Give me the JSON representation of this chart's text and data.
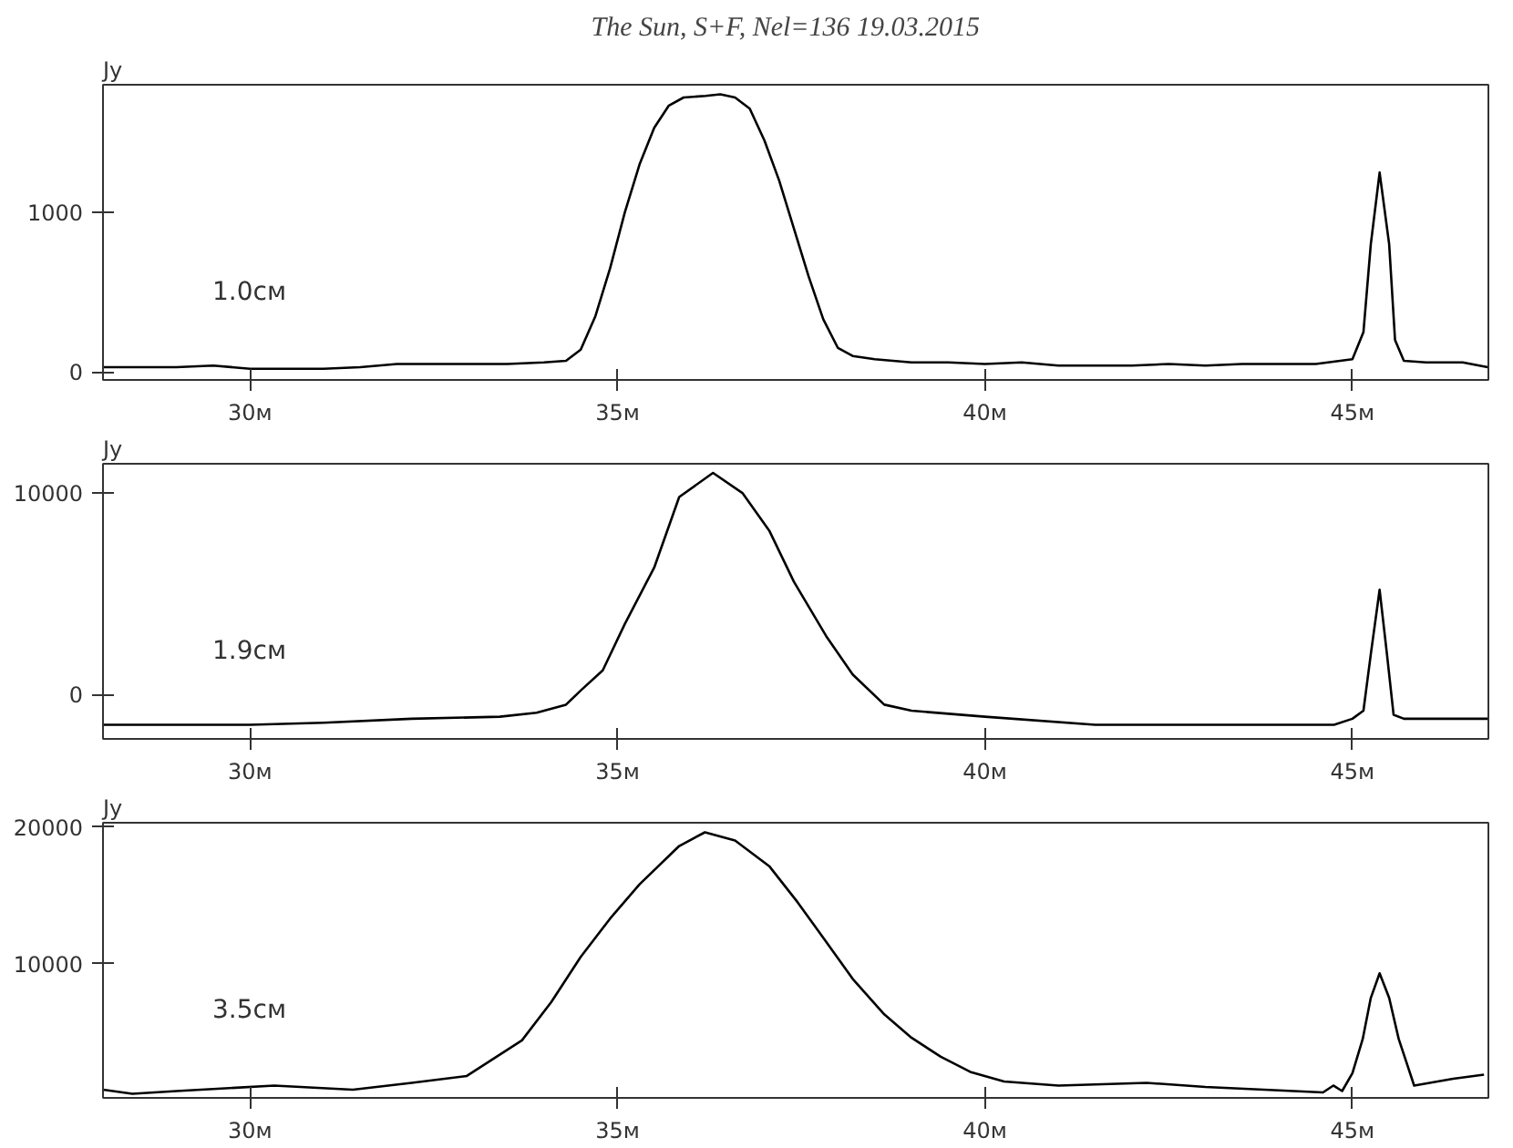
{
  "chart_data": [
    {
      "type": "line",
      "title": "The Sun, S+F, Nel=136    19.03.2015",
      "ylabel": "Jy",
      "annotations": [
        "1.0см"
      ],
      "x": [
        28.0,
        28.5,
        29.0,
        29.5,
        30.0,
        30.5,
        31.0,
        31.5,
        32.0,
        32.5,
        33.0,
        33.5,
        34.0,
        34.3,
        34.5,
        34.7,
        34.9,
        35.1,
        35.3,
        35.5,
        35.7,
        35.9,
        36.2,
        36.4,
        36.6,
        36.8,
        37.0,
        37.2,
        37.4,
        37.6,
        37.8,
        38.0,
        38.2,
        38.5,
        39.0,
        39.5,
        40.0,
        40.5,
        41.0,
        41.5,
        42.0,
        42.5,
        43.0,
        43.5,
        44.0,
        44.5,
        45.0,
        45.15,
        45.25,
        45.37,
        45.5,
        45.58,
        45.7,
        46.0,
        46.5,
        46.84
      ],
      "series": [
        {
          "color": "#000000",
          "values": [
            30,
            30,
            30,
            40,
            20,
            20,
            20,
            30,
            50,
            50,
            50,
            50,
            60,
            70,
            140,
            350,
            650,
            1000,
            1300,
            1530,
            1670,
            1720,
            1730,
            1740,
            1720,
            1650,
            1450,
            1200,
            900,
            600,
            330,
            150,
            100,
            80,
            60,
            60,
            50,
            60,
            40,
            40,
            40,
            50,
            40,
            50,
            50,
            50,
            80,
            250,
            800,
            1250,
            800,
            200,
            70,
            60,
            60,
            30
          ]
        }
      ],
      "xlim": [
        28.0,
        46.85
      ],
      "ylim": [
        -50,
        1800
      ],
      "xticks": [
        {
          "value": 30,
          "label": "30м"
        },
        {
          "value": 35,
          "label": "35м"
        },
        {
          "value": 40,
          "label": "40м"
        },
        {
          "value": 45,
          "label": "45м"
        }
      ],
      "yticks": [
        0,
        1000
      ]
    },
    {
      "type": "line",
      "ylabel": "Jy",
      "annotations": [
        "1.9см"
      ],
      "x": [
        28.0,
        29.0,
        30.0,
        31.0,
        32.2,
        33.4,
        33.9,
        34.3,
        34.5,
        34.8,
        35.1,
        35.5,
        35.84,
        36.3,
        36.7,
        37.07,
        37.4,
        37.84,
        38.2,
        38.63,
        39.0,
        40.0,
        41.5,
        43.0,
        44.75,
        45.0,
        45.15,
        45.25,
        45.37,
        45.47,
        45.56,
        45.7,
        46.2,
        46.84
      ],
      "series": [
        {
          "color": "#000000",
          "values": [
            -1500,
            -1500,
            -1500,
            -1400,
            -1200,
            -1100,
            -900,
            -500,
            200,
            1200,
            3500,
            6300,
            9800,
            11000,
            10000,
            8100,
            5600,
            2900,
            1000,
            -500,
            -800,
            -1100,
            -1500,
            -1500,
            -1500,
            -1200,
            -800,
            2000,
            5200,
            2000,
            -1000,
            -1200,
            -1200,
            -1200
          ]
        }
      ],
      "xlim": [
        28.0,
        46.85
      ],
      "ylim": [
        -2200,
        11450
      ],
      "xticks": [
        {
          "value": 30,
          "label": "30м"
        },
        {
          "value": 35,
          "label": "35м"
        },
        {
          "value": 40,
          "label": "40м"
        },
        {
          "value": 45,
          "label": "45м"
        }
      ],
      "yticks": [
        0,
        10000
      ]
    },
    {
      "type": "line",
      "ylabel": "Jy",
      "annotations": [
        "3.5см"
      ],
      "x": [
        28.0,
        28.4,
        29.0,
        30.33,
        31.4,
        32.2,
        32.95,
        33.7,
        34.1,
        34.5,
        34.9,
        35.3,
        35.84,
        36.19,
        36.6,
        37.07,
        37.45,
        37.84,
        38.2,
        38.63,
        39.0,
        39.4,
        39.8,
        40.26,
        41.0,
        42.2,
        43.0,
        43.8,
        44.6,
        44.74,
        44.86,
        45.0,
        45.14,
        45.25,
        45.37,
        45.5,
        45.63,
        45.84,
        46.37,
        46.79
      ],
      "series": [
        {
          "color": "#000000",
          "values": [
            800,
            500,
            700,
            1100,
            800,
            1300,
            1800,
            4400,
            7200,
            10500,
            13300,
            15800,
            18600,
            19600,
            19000,
            17100,
            14500,
            11600,
            8900,
            6300,
            4600,
            3200,
            2100,
            1400,
            1100,
            1300,
            1000,
            800,
            600,
            1100,
            700,
            2000,
            4500,
            7500,
            9300,
            7500,
            4500,
            1100,
            1600,
            1900
          ]
        }
      ],
      "xlim": [
        28.0,
        46.85
      ],
      "ylim": [
        200,
        20300
      ],
      "xticks": [
        {
          "value": 30,
          "label": "30м"
        },
        {
          "value": 35,
          "label": "35м"
        },
        {
          "value": 40,
          "label": "40м"
        },
        {
          "value": 45,
          "label": "45м"
        }
      ],
      "yticks": [
        10000,
        20000
      ]
    }
  ]
}
